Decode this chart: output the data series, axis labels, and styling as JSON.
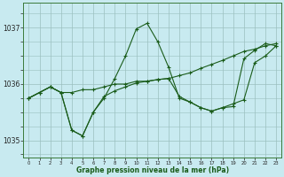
{
  "xlabel": "Graphe pression niveau de la mer (hPa)",
  "background_color": "#c8eaf0",
  "grid_color": "#9bbfbf",
  "line_color": "#1a5c1a",
  "hours": [
    0,
    1,
    2,
    3,
    4,
    5,
    6,
    7,
    8,
    9,
    10,
    11,
    12,
    13,
    14,
    15,
    16,
    17,
    18,
    19,
    20,
    21,
    22,
    23
  ],
  "line1": [
    1035.75,
    1035.85,
    1035.95,
    1035.85,
    1035.85,
    1035.9,
    1035.9,
    1035.95,
    1036.0,
    1036.0,
    1036.05,
    1036.05,
    1036.08,
    1036.1,
    1036.15,
    1036.2,
    1036.28,
    1036.35,
    1036.42,
    1036.5,
    1036.58,
    1036.62,
    1036.68,
    1036.72
  ],
  "line2": [
    1035.75,
    1035.85,
    1035.95,
    1035.85,
    1035.18,
    1035.08,
    1035.5,
    1035.75,
    1036.1,
    1036.5,
    1036.98,
    1037.08,
    1036.75,
    1036.3,
    1035.75,
    1035.68,
    1035.58,
    1035.52,
    1035.58,
    1035.6,
    1036.45,
    1036.6,
    1036.72,
    1036.68
  ],
  "line3": [
    1035.75,
    1035.85,
    1035.95,
    1035.85,
    1035.18,
    1035.08,
    1035.5,
    1035.78,
    1035.88,
    1035.95,
    1036.02,
    1036.05,
    1036.08,
    1036.1,
    1035.78,
    1035.68,
    1035.58,
    1035.52,
    1035.58,
    1035.65,
    1035.72,
    1036.38,
    1036.5,
    1036.68
  ],
  "ylim_min": 1034.7,
  "ylim_max": 1037.45,
  "yticks": [
    1035,
    1036,
    1037
  ],
  "xlim_min": -0.5,
  "xlim_max": 23.5
}
